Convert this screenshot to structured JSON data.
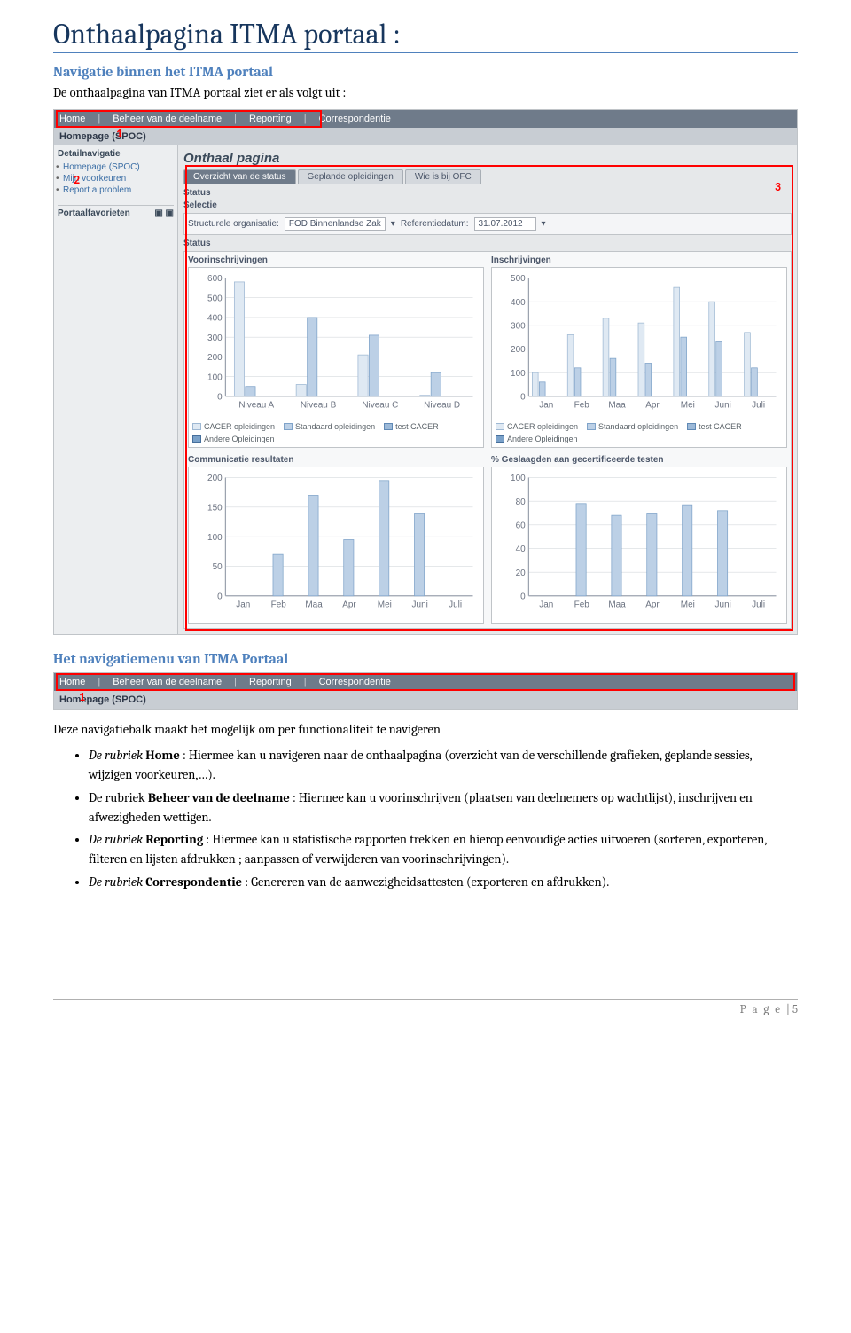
{
  "h1": "Onthaalpagina ITMA portaal :",
  "h2_nav": "Navigatie binnen het ITMA portaal",
  "intro1": "De onthaalpagina van ITMA portaal ziet er als volgt uit :",
  "h2_menu": "Het navigatiemenu van ITMA Portaal",
  "intro2": "Deze navigatiebalk maakt het mogelijk om per functionaliteit te navigeren",
  "annotations": {
    "n1": "1",
    "n2": "2",
    "n3": "3",
    "n1b": "1"
  },
  "ss": {
    "topbar": [
      "Home",
      "Beheer van de deelname",
      "Reporting",
      "Correspondentie"
    ],
    "subbar": "Homepage (SPOC)",
    "side": {
      "hdr": "Detailnavigatie",
      "items": [
        "Homepage (SPOC)",
        "Mijn voorkeuren",
        "Report a problem"
      ],
      "fav": "Portaalfavorieten"
    },
    "title": "Onthaal pagina",
    "tabs": [
      "Overzicht van de status",
      "Geplande opleidingen",
      "Wie is bij OFC"
    ],
    "lbl_status": "Status",
    "lbl_selectie": "Selectie",
    "sel_org_lbl": "Structurele organisatie:",
    "sel_org_val": "FOD Binnenlandse Zak",
    "sel_date_lbl": "Referentiedatum:",
    "sel_date_val": "31.07.2012",
    "charts": {
      "voor": {
        "title": "Voorinschrijvingen",
        "categories": [
          "Niveau A",
          "Niveau B",
          "Niveau C",
          "Niveau D"
        ],
        "ylim": [
          0,
          600
        ],
        "ystep": 100,
        "series": [
          {
            "name": "CACER opleidingen",
            "color": "#dfe9f3",
            "border": "#9eb8d3",
            "values": [
              580,
              60,
              210,
              5
            ]
          },
          {
            "name": "Standaard opleidingen",
            "color": "#bcd0e6",
            "border": "#7fa3c9",
            "values": [
              50,
              400,
              310,
              120
            ]
          },
          {
            "name": "test CACER",
            "color": "#9cb9d8",
            "border": "#6089b5",
            "values": [
              0,
              0,
              0,
              0
            ]
          },
          {
            "name": "Andere Opleidingen",
            "color": "#7aa1c9",
            "border": "#466f9c",
            "values": [
              0,
              0,
              0,
              0
            ]
          }
        ]
      },
      "ins": {
        "title": "Inschrijvingen",
        "categories": [
          "Jan",
          "Feb",
          "Maa",
          "Apr",
          "Mei",
          "Juni",
          "Juli"
        ],
        "ylim": [
          0,
          500
        ],
        "ystep": 100,
        "series": [
          {
            "name": "CACER opleidingen",
            "color": "#dfe9f3",
            "border": "#9eb8d3",
            "values": [
              100,
              260,
              330,
              310,
              460,
              400,
              270
            ]
          },
          {
            "name": "Standaard opleidingen",
            "color": "#bcd0e6",
            "border": "#7fa3c9",
            "values": [
              60,
              120,
              160,
              140,
              250,
              230,
              120
            ]
          },
          {
            "name": "test CACER",
            "color": "#9cb9d8",
            "border": "#6089b5",
            "values": [
              0,
              0,
              0,
              0,
              0,
              0,
              0
            ]
          },
          {
            "name": "Andere Opleidingen",
            "color": "#7aa1c9",
            "border": "#466f9c",
            "values": [
              0,
              0,
              0,
              0,
              0,
              0,
              0
            ]
          }
        ]
      },
      "comm": {
        "title": "Communicatie resultaten",
        "categories": [
          "Jan",
          "Feb",
          "Maa",
          "Apr",
          "Mei",
          "Juni",
          "Juli"
        ],
        "ylim": [
          0,
          200
        ],
        "ystep": 50,
        "series": [
          {
            "name": "",
            "color": "#bcd0e6",
            "border": "#7fa3c9",
            "values": [
              0,
              70,
              170,
              95,
              195,
              140,
              0
            ]
          }
        ]
      },
      "ges": {
        "title": "% Geslaagden aan gecertificeerde testen",
        "categories": [
          "Jan",
          "Feb",
          "Maa",
          "Apr",
          "Mei",
          "Juni",
          "Juli"
        ],
        "ylim": [
          0,
          100
        ],
        "ystep": 20,
        "series": [
          {
            "name": "",
            "color": "#bcd0e6",
            "border": "#7fa3c9",
            "values": [
              0,
              78,
              68,
              70,
              77,
              72,
              0
            ]
          }
        ]
      }
    }
  },
  "bullets": {
    "b1_pre": "De rubriek ",
    "b1_bold": "Home",
    "b1_post": " : Hiermee kan u navigeren naar de onthaalpagina (overzicht van de verschillende grafieken, geplande sessies, wijzigen voorkeuren,…).",
    "b2_pre": "De rubriek ",
    "b2_bold": "Beheer van de deelname",
    "b2_post": " : Hiermee kan u voorinschrijven (plaatsen van deelnemers op wachtlijst), inschrijven en afwezigheden wettigen.",
    "b3_pre_it": "De rubriek ",
    "b3_bold": "Reporting",
    "b3_post": " : Hiermee kan u statistische rapporten trekken en hierop eenvoudige acties uitvoeren (sorteren, exporteren, filteren en lijsten afdrukken ; aanpassen of verwijderen van voorinschrijvingen).",
    "b4_pre_it": "De rubriek ",
    "b4_bold": "Correspondentie",
    "b4_post": " : Genereren van de aanwezigheidsattesten (exporteren en afdrukken)."
  },
  "footer_label": "P a g e ",
  "footer_sep": "| ",
  "footer_num": "5"
}
